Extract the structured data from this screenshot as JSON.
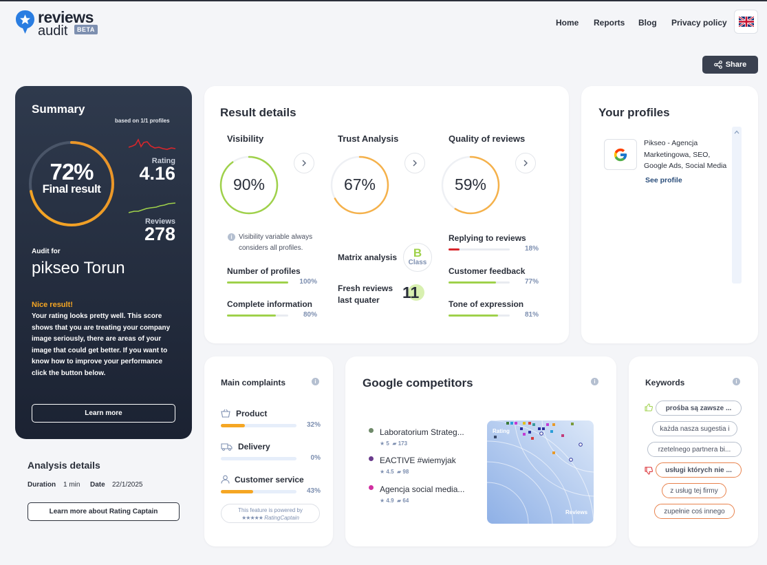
{
  "header": {
    "logo_line1": "reviews",
    "logo_line2": "audit",
    "beta": "BETA",
    "nav": [
      "Home",
      "Reports",
      "Blog",
      "Privacy policy"
    ],
    "share": "Share"
  },
  "summary": {
    "title": "Summary",
    "based_on": "based on 1/1 profiles",
    "final_percent": "72%",
    "final_label": "Final result",
    "final_value": 72,
    "rating_label": "Rating",
    "rating_value": "4.16",
    "reviews_label": "Reviews",
    "reviews_value": "278",
    "audit_for": "Audit for",
    "audit_name": "pikseo Torun",
    "nice": "Nice result!",
    "nice_text": "Your rating looks pretty well. This score shows that you are treating your company image seriously, there are areas of your image that could get better. If you want to know how to improve your performance click the button below.",
    "learn_more": "Learn more"
  },
  "analysis": {
    "title": "Analysis details",
    "duration_label": "Duration",
    "duration_value": "1 min",
    "date_label": "Date",
    "date_value": "22/1/2025",
    "button": "Learn more about Rating Captain"
  },
  "result": {
    "title": "Result details",
    "visibility": {
      "title": "Visibility",
      "percent": "90%",
      "value": 90,
      "note": "Visibility variable always considers all profiles.",
      "metrics": [
        {
          "label": "Number of profiles",
          "pct": "100%",
          "value": 100
        },
        {
          "label": "Complete information",
          "pct": "80%",
          "value": 80
        }
      ]
    },
    "trust": {
      "title": "Trust Analysis",
      "percent": "67%",
      "value": 67,
      "matrix_label": "Matrix analysis",
      "matrix_class": "B",
      "matrix_class_word": "Class",
      "fresh_label": "Fresh reviews last quater",
      "fresh_value": "11"
    },
    "quality": {
      "title": "Quality of reviews",
      "percent": "59%",
      "value": 59,
      "metrics": [
        {
          "label": "Replying to reviews",
          "pct": "18%",
          "value": 18,
          "color": "#d9262b"
        },
        {
          "label": "Customer feedback",
          "pct": "77%",
          "value": 77,
          "color": "#9fd14a"
        },
        {
          "label": "Tone of expression",
          "pct": "81%",
          "value": 81,
          "color": "#9fd14a"
        }
      ]
    }
  },
  "profiles": {
    "title": "Your profiles",
    "item_name": "Pikseo - Agencja Marketingowa, SEO, Google Ads, Social Media",
    "see_profile": "See profile"
  },
  "complaints": {
    "title": "Main complaints",
    "items": [
      {
        "label": "Product",
        "pct": "32%",
        "value": 32,
        "icon": "basket-icon"
      },
      {
        "label": "Delivery",
        "pct": "0%",
        "value": 0,
        "icon": "truck-icon"
      },
      {
        "label": "Customer service",
        "pct": "43%",
        "value": 43,
        "icon": "user-icon"
      }
    ],
    "powered_line1": "This feature is powered by",
    "powered_line2": "RatingCaptain"
  },
  "competitors": {
    "title": "Google competitors",
    "items": [
      {
        "name": "Laboratorium Strateg...",
        "rating": "5",
        "reviews": "173",
        "dot": "#6f8a6a"
      },
      {
        "name": "EACTIVE #wiemyjak",
        "rating": "4.5",
        "reviews": "98",
        "dot": "#6a3b8c"
      },
      {
        "name": "Agencja social media...",
        "rating": "4.9",
        "reviews": "64",
        "dot": "#d12fa0"
      }
    ],
    "matrix_rating": "Rating",
    "matrix_reviews": "Reviews"
  },
  "keywords": {
    "title": "Keywords",
    "positive": [
      "prośba są zawsze ...",
      "każda nasza sugestia i",
      "rzetelnego partnera bi..."
    ],
    "negative": [
      "usługi których nie ...",
      "z usług tej firmy",
      "zupełnie coś innego"
    ]
  },
  "colors": {
    "accent_orange": "#f5a623",
    "accent_green": "#9fd14a",
    "dark": "#2a2f3a",
    "muted": "#7d8fb0"
  }
}
